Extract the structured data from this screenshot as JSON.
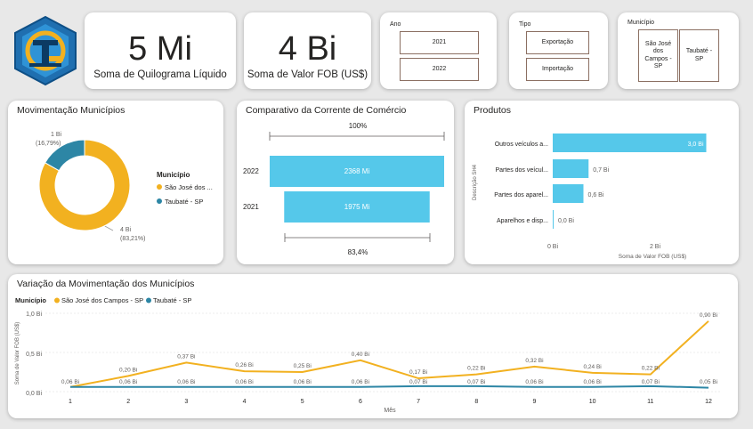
{
  "kpis": [
    {
      "value": "5 Mi",
      "label": "Soma de Quilograma Líquido"
    },
    {
      "value": "4 Bi",
      "label": "Soma de Valor FOB (US$)"
    }
  ],
  "slicers": {
    "ano": {
      "title": "Ano",
      "options": [
        "2021",
        "2022"
      ]
    },
    "tipo": {
      "title": "Tipo",
      "options": [
        "Exportação",
        "Importação"
      ]
    },
    "municipio": {
      "title": "Município",
      "options": [
        "São José dos Campos - SP",
        "Taubaté - SP"
      ]
    }
  },
  "colors": {
    "gold": "#f2b120",
    "teal": "#2d86a5",
    "cyan": "#55c8ea"
  },
  "donut": {
    "title": "Movimentação Municípios",
    "legend_title": "Município",
    "legend": [
      "São José dos ...",
      "Taubaté - SP"
    ],
    "labels": [
      {
        "value": "4 Bi",
        "pct": "(83,21%)"
      },
      {
        "value": "1 Bi",
        "pct": "(16,79%)"
      }
    ]
  },
  "comparativo": {
    "title": "Comparativo da Corrente de Comércio",
    "top_pct": "100%",
    "bottom_pct": "83,4%"
  },
  "produtos": {
    "title": "Produtos",
    "ylabel": "Descrição SH4",
    "xlabel": "Soma de Valor FOB (US$)",
    "xticks": [
      "0 Bi",
      "2 Bi"
    ]
  },
  "line": {
    "title": "Variação da Movimentação dos Municípios",
    "legend_title": "Município",
    "legend": [
      "São José dos Campos - SP",
      "Taubaté - SP"
    ],
    "ylabel": "Soma de Valor FOB (US$)",
    "xlabel": "Mês",
    "yticks": [
      "1,0 Bi",
      "0,5 Bi",
      "0,0 Bi"
    ]
  },
  "chart_data": [
    {
      "type": "pie",
      "title": "Movimentação Municípios",
      "categories": [
        "São José dos Campos - SP",
        "Taubaté - SP"
      ],
      "values": [
        83.21,
        16.79
      ],
      "data_labels": [
        "4 Bi (83,21%)",
        "1 Bi (16,79%)"
      ],
      "legend_position": "right"
    },
    {
      "type": "bar",
      "title": "Comparativo da Corrente de Comércio",
      "categories": [
        "2022",
        "2021"
      ],
      "values": [
        2368,
        1975
      ],
      "data_labels": [
        "2368 Mi",
        "1975 Mi"
      ]
    },
    {
      "type": "bar",
      "title": "Produtos",
      "categories": [
        "Outros veículos a...",
        "Partes dos veícul...",
        "Partes dos aparel...",
        "Aparelhos e disp..."
      ],
      "values": [
        3.0,
        0.7,
        0.6,
        0.0
      ],
      "data_labels": [
        "3,0 Bi",
        "0,7 Bi",
        "0,6 Bi",
        "0,0 Bi"
      ],
      "xlabel": "Soma de Valor FOB (US$)",
      "ylabel": "Descrição SH4",
      "xlim": [
        0,
        3
      ]
    },
    {
      "type": "line",
      "title": "Variação da Movimentação dos Municípios",
      "x": [
        1,
        2,
        3,
        4,
        5,
        6,
        7,
        8,
        9,
        10,
        11,
        12
      ],
      "series": [
        {
          "name": "São José dos Campos - SP",
          "values": [
            0.06,
            0.2,
            0.37,
            0.26,
            0.25,
            0.4,
            0.17,
            0.22,
            0.32,
            0.24,
            0.22,
            0.9
          ],
          "labels": [
            "0,06 Bi",
            "0,20 Bi",
            "0,37 Bi",
            "0,26 Bi",
            "0,25 Bi",
            "0,40 Bi",
            "0,17 Bi",
            "0,22 Bi",
            "0,32 Bi",
            "0,24 Bi",
            "0,22 Bi",
            "0,90 Bi"
          ]
        },
        {
          "name": "Taubaté - SP",
          "values": [
            0.06,
            0.06,
            0.06,
            0.06,
            0.06,
            0.06,
            0.07,
            0.07,
            0.06,
            0.06,
            0.07,
            0.05
          ],
          "labels": [
            "0,06 Bi",
            "0,06 Bi",
            "0,06 Bi",
            "0,06 Bi",
            "0,06 Bi",
            "0,06 Bi",
            "0,07 Bi",
            "0,07 Bi",
            "0,06 Bi",
            "0,06 Bi",
            "0,07 Bi",
            "0,05 Bi"
          ]
        }
      ],
      "xlabel": "Mês",
      "ylabel": "Soma de Valor FOB (US$)",
      "ylim": [
        0,
        1.0
      ]
    }
  ]
}
